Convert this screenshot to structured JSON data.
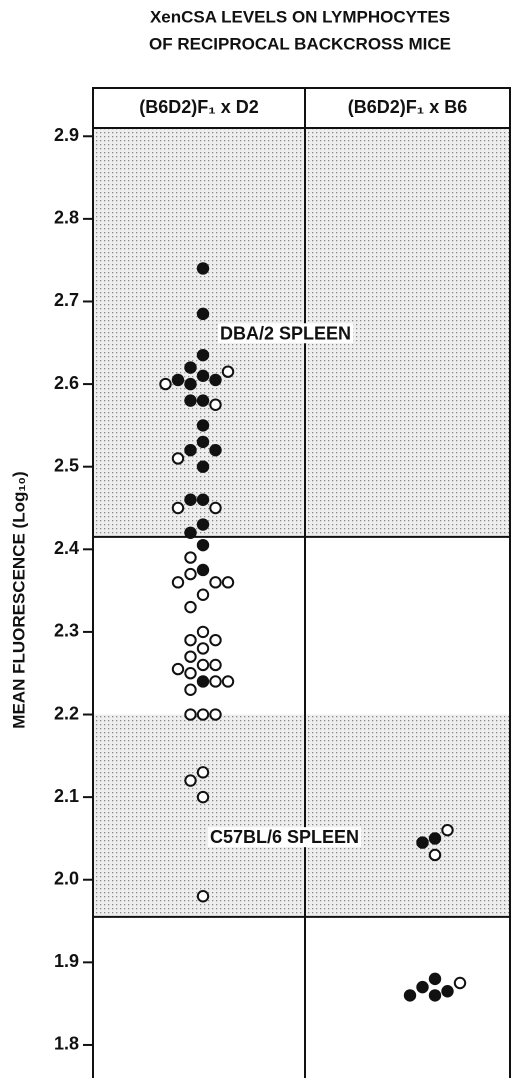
{
  "chart_data": {
    "type": "dotplot",
    "title": [
      "XenCSA LEVELS ON LYMPHOCYTES",
      "OF RECIPROCAL BACKCROSS MICE"
    ],
    "y_label": "MEAN FLUORESCENCE (Log₁₀)",
    "ylim": [
      1.76,
      2.91
    ],
    "yticks": [
      1.8,
      1.9,
      {
        "value": 2.0,
        "label": "2.0"
      },
      2.1,
      2.2,
      2.3,
      2.4,
      2.5,
      2.6,
      2.7,
      2.8,
      2.9
    ],
    "shaded_bands": [
      [
        2.415,
        2.91
      ],
      [
        1.955,
        2.2
      ]
    ],
    "annotations": [
      {
        "text": "DBA/2 SPLEEN",
        "value": 2.66,
        "group": 0
      },
      {
        "text": "C57BL/6 SPLEEN",
        "value": 2.05,
        "group": 1
      }
    ],
    "groups": [
      {
        "category": "(B6D2)F₁ x D2",
        "series": [
          {
            "marker": "filled",
            "values": [
              2.74,
              2.685,
              2.635,
              2.62,
              2.61,
              2.605,
              2.605,
              2.6,
              2.58,
              2.58,
              2.55,
              2.53,
              2.52,
              2.52,
              2.5,
              2.46,
              2.46,
              2.43,
              2.42,
              2.405,
              2.375,
              2.24
            ]
          },
          {
            "marker": "open",
            "values": [
              2.615,
              2.6,
              2.575,
              2.51,
              2.45,
              2.45,
              2.39,
              2.37,
              2.36,
              2.36,
              2.36,
              2.345,
              2.33,
              2.3,
              2.29,
              2.29,
              2.28,
              2.27,
              2.26,
              2.26,
              2.255,
              2.25,
              2.24,
              2.24,
              2.23,
              2.2,
              2.2,
              2.2,
              2.13,
              2.12,
              2.1,
              1.98
            ]
          }
        ]
      },
      {
        "category": "(B6D2)F₁ x B6",
        "series": [
          {
            "marker": "filled",
            "values": [
              2.05,
              2.045,
              1.88,
              1.87,
              1.865,
              1.86,
              1.86
            ]
          },
          {
            "marker": "open",
            "values": [
              2.06,
              2.03,
              1.875
            ]
          }
        ]
      }
    ]
  }
}
